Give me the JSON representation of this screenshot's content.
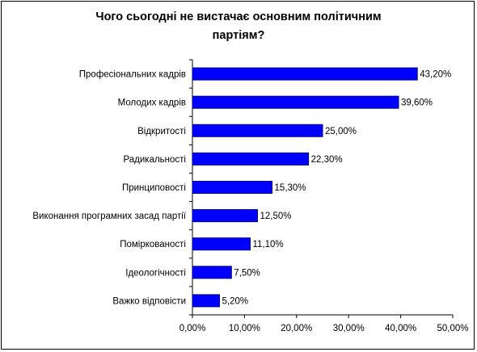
{
  "chart_data": {
    "type": "bar",
    "orientation": "horizontal",
    "title_lines": [
      "Чого сьогодні не вистачає основним політичним",
      "партіям?"
    ],
    "categories": [
      "Професіональних кадрів",
      "Молодих кадрів",
      "Відкритості",
      "Радикальності",
      "Принциповості",
      "Виконання програмних засад партії",
      "Поміркованості",
      "Ідеологічності",
      "Важко відповісти"
    ],
    "values": [
      43.2,
      39.6,
      25.0,
      22.3,
      15.3,
      12.5,
      11.1,
      7.5,
      5.2
    ],
    "data_labels": [
      "43,20%",
      "39,60%",
      "25,00%",
      "22,30%",
      "15,30%",
      "12,50%",
      "11,10%",
      "7,50%",
      "5,20%"
    ],
    "x_ticks": [
      "0,00%",
      "10,00%",
      "20,00%",
      "30,00%",
      "40,00%",
      "50,00%"
    ],
    "xlim": [
      0,
      50
    ],
    "grid": false,
    "legend": "none",
    "colors": {
      "bar_fill": "#0000ff",
      "bar_stroke": "#000080",
      "axis": "#000000",
      "frame": "#000000"
    }
  }
}
